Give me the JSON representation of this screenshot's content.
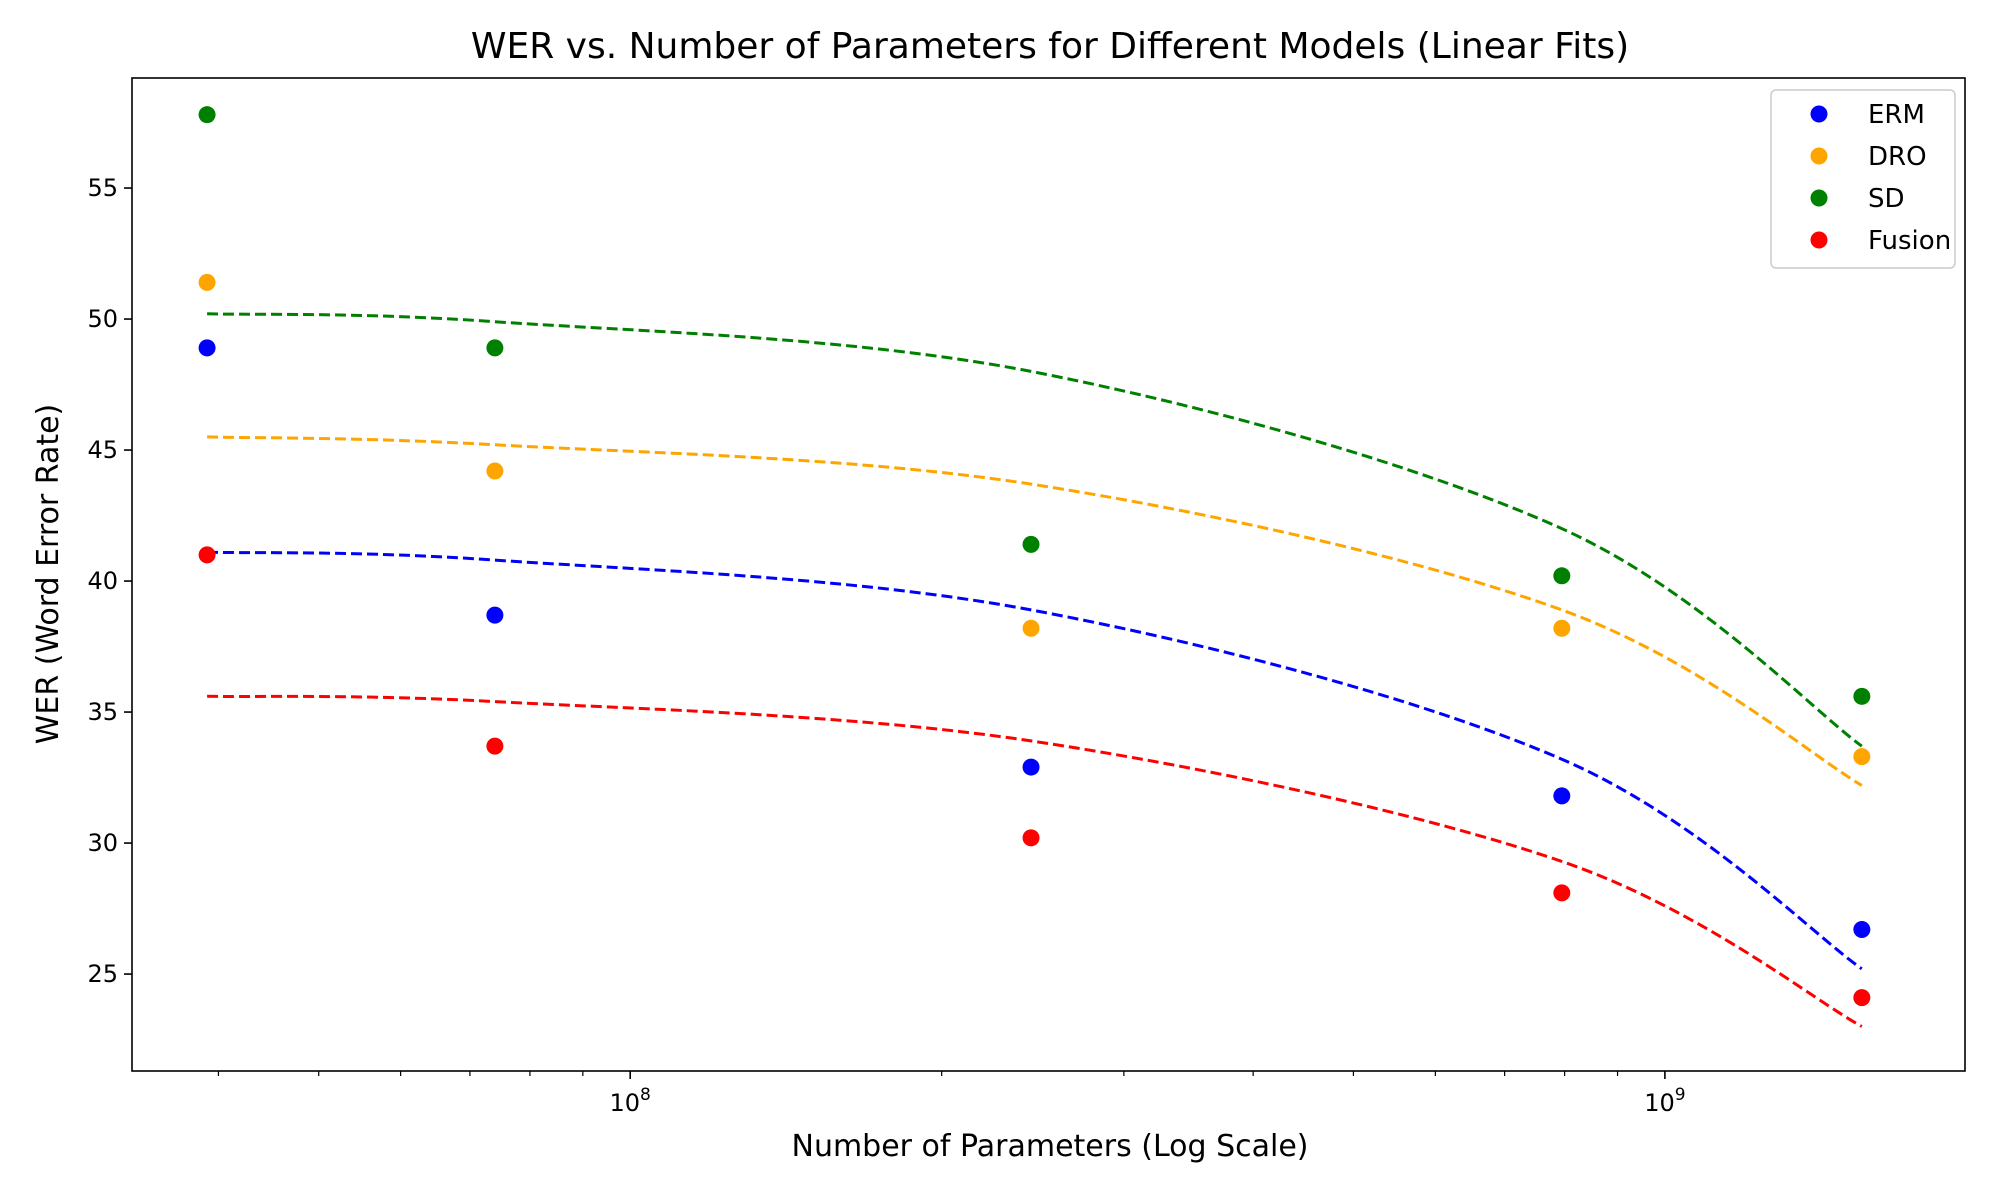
{
  "chart_data": {
    "type": "scatter",
    "title": "WER vs. Number of Parameters for Different Models (Linear Fits)",
    "xlabel": "Number of Parameters (Log Scale)",
    "ylabel": "WER (Word Error Rate)",
    "xscale": "log",
    "xlim": [
      33000000,
      1950000000
    ],
    "ylim": [
      21.3,
      59.2
    ],
    "yticks": [
      25,
      30,
      35,
      40,
      45,
      50,
      55
    ],
    "xticks_major": [
      {
        "value": 100000000,
        "base": "10",
        "exp": "8"
      },
      {
        "value": 1000000000,
        "base": "10",
        "exp": "9"
      }
    ],
    "x": [
      39000000,
      74000000,
      244000000,
      795000000,
      1550000000
    ],
    "legend_position": "top-right",
    "series": [
      {
        "name": "ERM",
        "color": "#0000ff",
        "points": [
          48.9,
          38.7,
          32.9,
          31.8,
          26.7
        ],
        "fit": [
          41.1,
          40.8,
          38.9,
          33.2,
          25.2
        ]
      },
      {
        "name": "DRO",
        "color": "#ffa500",
        "points": [
          51.4,
          44.2,
          38.2,
          38.2,
          33.3
        ],
        "fit": [
          45.5,
          45.2,
          43.7,
          38.9,
          32.2
        ]
      },
      {
        "name": "SD",
        "color": "#008000",
        "points": [
          57.8,
          48.9,
          41.4,
          40.2,
          35.6
        ],
        "fit": [
          50.2,
          49.9,
          48.0,
          42.0,
          33.7
        ]
      },
      {
        "name": "Fusion",
        "color": "#ff0000",
        "points": [
          41.0,
          33.7,
          30.2,
          28.1,
          24.1
        ],
        "fit": [
          35.6,
          35.4,
          33.9,
          29.3,
          23.0
        ]
      }
    ]
  }
}
